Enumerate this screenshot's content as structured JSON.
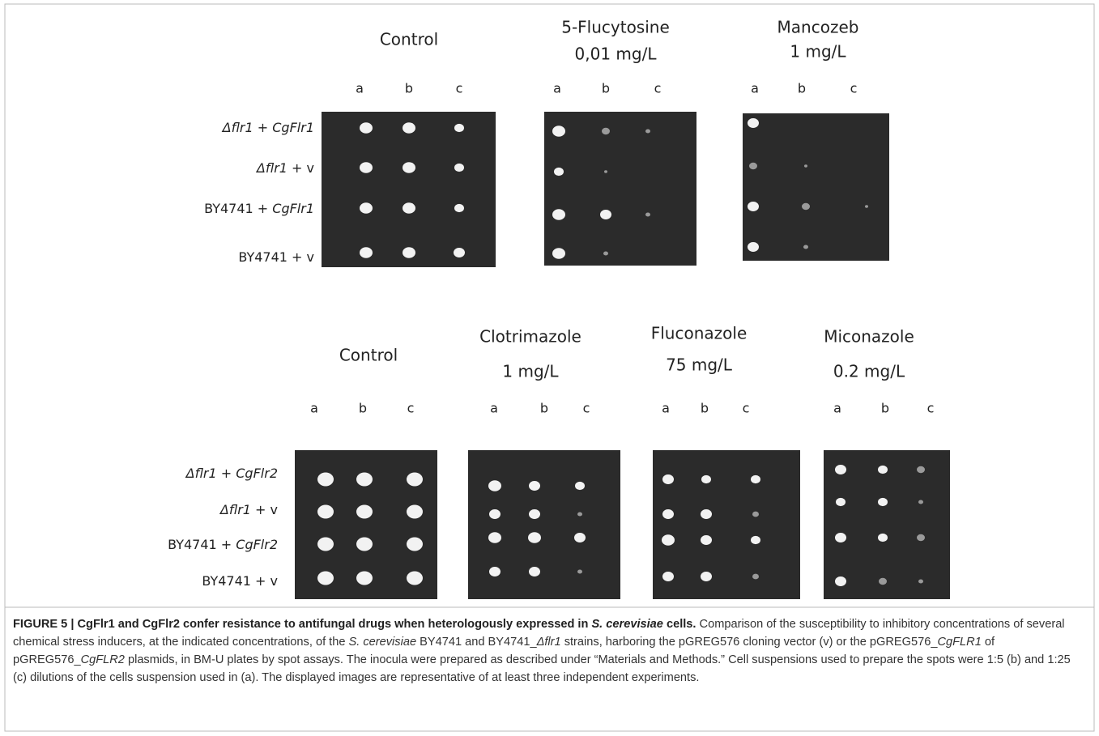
{
  "figure": {
    "top": {
      "row_labels": [
        [
          {
            "text": "Δflr1 + CgFlr1",
            "italic": true
          }
        ],
        [
          {
            "text": "Δflr1",
            "italic": true
          },
          {
            "text": " + v",
            "italic": false
          }
        ],
        [
          {
            "text": "BY4741 + ",
            "italic": false
          },
          {
            "text": "CgFlr1",
            "italic": true
          }
        ],
        [
          {
            "text": "BY4741 + v",
            "italic": false
          }
        ]
      ],
      "panels": [
        {
          "title": [
            "Control"
          ],
          "columns": [
            "a",
            "b",
            "c"
          ]
        },
        {
          "title": [
            "5-Flucytosine",
            "0,01 mg/L"
          ],
          "columns": [
            "a",
            "b",
            "c"
          ]
        },
        {
          "title": [
            "Mancozeb",
            "1 mg/L"
          ],
          "columns": [
            "a",
            "b",
            "c"
          ]
        }
      ]
    },
    "bottom": {
      "row_labels": [
        [
          {
            "text": "Δflr1 + CgFlr2",
            "italic": true
          }
        ],
        [
          {
            "text": "Δflr1",
            "italic": true
          },
          {
            "text": " + v",
            "italic": false
          }
        ],
        [
          {
            "text": "BY4741 + ",
            "italic": false
          },
          {
            "text": "CgFlr2",
            "italic": true
          }
        ],
        [
          {
            "text": "BY4741 + v",
            "italic": false
          }
        ]
      ],
      "panels": [
        {
          "title": [
            "Control"
          ],
          "columns": [
            "a",
            "b",
            "c"
          ]
        },
        {
          "title": [
            "Clotrimazole",
            "1 mg/L"
          ],
          "columns": [
            "a",
            "b",
            "c"
          ]
        },
        {
          "title": [
            "Fluconazole",
            "75 mg/L"
          ],
          "columns": [
            "a",
            "b",
            "c"
          ]
        },
        {
          "title": [
            "Miconazole",
            "0.2 mg/L"
          ],
          "columns": [
            "a",
            "b",
            "c"
          ]
        }
      ]
    },
    "caption": [
      {
        "text": "FIGURE 5 | CgFlr1 and CgFlr2 confer resistance to antifungal drugs when heterologously expressed in ",
        "style": "b"
      },
      {
        "text": "S. cerevisiae",
        "style": "bi"
      },
      {
        "text": " cells.",
        "style": "b"
      },
      {
        "text": " Comparison of the susceptibility to inhibitory concentrations of several chemical stress inducers, at the indicated concentrations, of the ",
        "style": "n"
      },
      {
        "text": "S. cerevisiae",
        "style": "i"
      },
      {
        "text": " BY4741 and BY4741_",
        "style": "n"
      },
      {
        "text": "Δflr1",
        "style": "i"
      },
      {
        "text": " strains, harboring the pGREG576 cloning vector (v) or the pGREG576_",
        "style": "n"
      },
      {
        "text": "CgFLR1",
        "style": "i"
      },
      {
        "text": " of pGREG576_",
        "style": "n"
      },
      {
        "text": "CgFLR2",
        "style": "i"
      },
      {
        "text": " plasmids, in BM-U plates by spot assays. The inocula were prepared as described under “Materials and Methods.” Cell suspensions used to prepare the spots were 1:5 (b) and 1:25 (c) dilutions of the cells suspension used in (a). The displayed images are representative of at least three independent experiments.",
        "style": "n"
      }
    ]
  }
}
